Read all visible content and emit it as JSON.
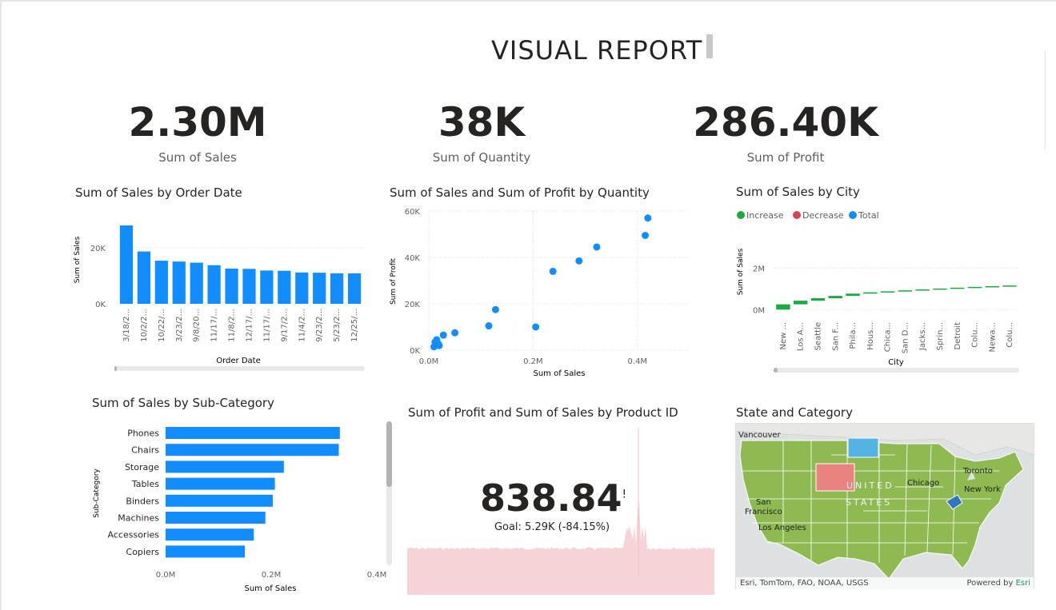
{
  "report_title": "VISUAL REPORT",
  "kpis": [
    {
      "value": "2.30M",
      "label": "Sum of Sales"
    },
    {
      "value": "38K",
      "label": "Sum of Quantity"
    },
    {
      "value": "286.40K",
      "label": "Sum of Profit"
    }
  ],
  "kpi_card": {
    "title": "Sum of Profit and Sum of Sales by Product ID",
    "value": "838.84",
    "flag": "!",
    "goal": "Goal: 5.29K (-84.15%)",
    "value_color": "#d64550"
  },
  "map": {
    "title": "State and Category",
    "labels": [
      "Vancouver",
      "Toronto",
      "Chicago",
      "New York",
      "San",
      "Francisco",
      "Los Angeles",
      "UNITED",
      "STATES"
    ],
    "credit": "Esri, TomTom, FAO, NOAA, USGS",
    "powered": "Powered by ",
    "powered_brand": "Esri"
  },
  "chart_data": [
    {
      "type": "bar",
      "title": "Sum of Sales by Order Date",
      "xlabel": "Order Date",
      "ylabel": "Sum of Sales",
      "categories": [
        "3/18/2...",
        "10/2/2...",
        "10/22/...",
        "3/23/2...",
        "9/8/20...",
        "11/17/...",
        "11/8/2...",
        "12/17/...",
        "11/17/...",
        "9/17/2...",
        "11/4/2...",
        "9/23/2...",
        "5/23/2...",
        "12/25/..."
      ],
      "values": [
        28000,
        18700,
        15400,
        15100,
        14700,
        13800,
        12600,
        12500,
        11900,
        11800,
        11200,
        11100,
        10900,
        10900
      ],
      "yticks": [
        "0K",
        "20K"
      ],
      "ylim": [
        0,
        30000
      ],
      "color": "#118dff"
    },
    {
      "type": "scatter",
      "title": "Sum of Sales and Sum of Profit by Quantity",
      "xlabel": "Sum of Sales",
      "ylabel": "Sum of Profit",
      "xticks": [
        "0.0M",
        "0.2M",
        "0.4M"
      ],
      "yticks": [
        "0K",
        "20K",
        "40K",
        "60K"
      ],
      "xlim": [
        0,
        0.5
      ],
      "ylim": [
        0,
        60000
      ],
      "points": [
        [
          0.01,
          1500
        ],
        [
          0.012,
          3500
        ],
        [
          0.015,
          4500
        ],
        [
          0.018,
          2800
        ],
        [
          0.02,
          2000
        ],
        [
          0.028,
          6500
        ],
        [
          0.05,
          7500
        ],
        [
          0.115,
          10500
        ],
        [
          0.128,
          17500
        ],
        [
          0.205,
          10000
        ],
        [
          0.238,
          34000
        ],
        [
          0.288,
          38500
        ],
        [
          0.322,
          44500
        ],
        [
          0.415,
          49500
        ],
        [
          0.42,
          57000
        ]
      ],
      "color": "#118dff"
    },
    {
      "type": "bar",
      "title": "Sum of Sales by City",
      "xlabel": "City",
      "ylabel": "Sum of Sales",
      "legend": [
        {
          "name": "Increase",
          "color": "#1aab40"
        },
        {
          "name": "Decrease",
          "color": "#d64554"
        },
        {
          "name": "Total",
          "color": "#118dff"
        }
      ],
      "categories": [
        "New ...",
        "Los A...",
        "Seattle",
        "San F...",
        "Phila...",
        "Hous...",
        "Chica...",
        "San D...",
        "Jacks...",
        "Sprin...",
        "Detroit",
        "Colu...",
        "Newa...",
        "Colu..."
      ],
      "increments": [
        256000,
        176000,
        120000,
        112000,
        110000,
        64000,
        48000,
        47000,
        45000,
        43000,
        42000,
        38000,
        35000,
        33000
      ],
      "yticks": [
        "0M",
        "2M"
      ],
      "ylim": [
        -300000,
        2800000
      ],
      "color": "#1aab40"
    },
    {
      "type": "bar",
      "orientation": "horizontal",
      "title": "Sum of Sales by Sub-Category",
      "xlabel": "Sum of Sales",
      "ylabel": "Sub-Category",
      "categories": [
        "Phones",
        "Chairs",
        "Storage",
        "Tables",
        "Binders",
        "Machines",
        "Accessories",
        "Copiers"
      ],
      "values": [
        330000,
        328000,
        224000,
        207000,
        203000,
        189000,
        167000,
        150000
      ],
      "xticks": [
        "0.0M",
        "0.2M",
        "0.4M"
      ],
      "xlim": [
        0,
        0.4
      ],
      "color": "#118dff"
    }
  ]
}
